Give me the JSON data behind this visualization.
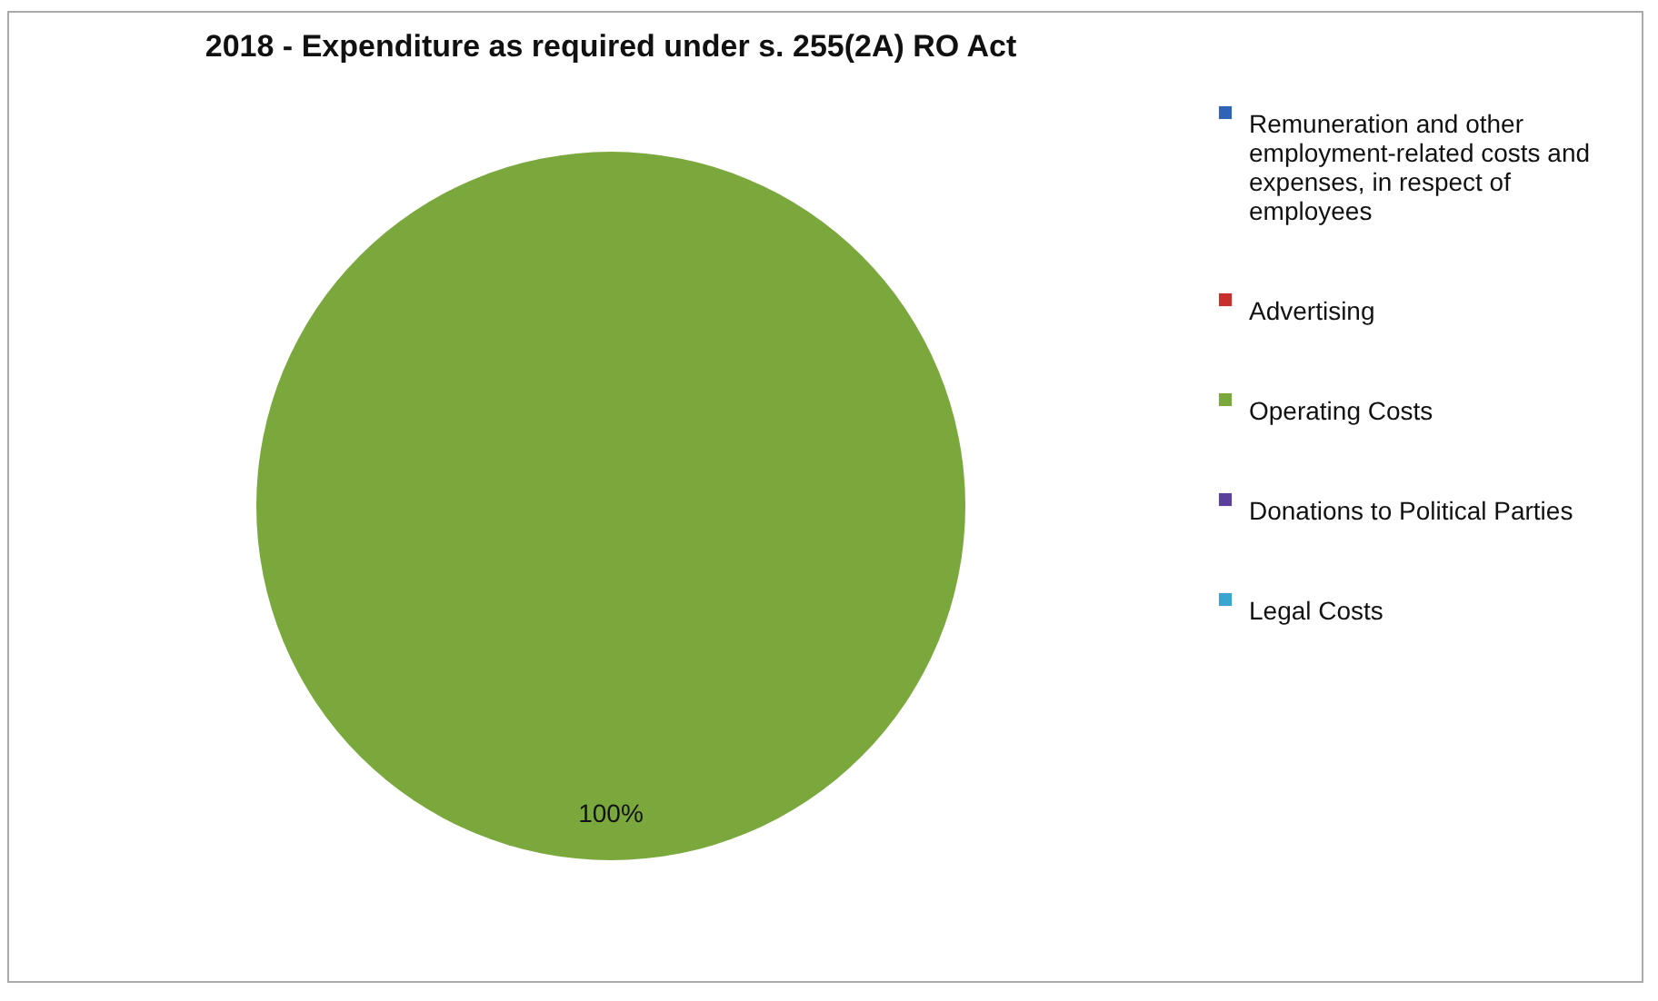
{
  "chart_data": {
    "type": "pie",
    "title": "2018 - Expenditure as required under s. 255(2A) RO Act",
    "categories": [
      "Remuneration and other employment-related costs and expenses, in respect of employees",
      "Advertising",
      "Operating Costs",
      "Donations to Political Parties",
      "Legal Costs"
    ],
    "values": [
      0,
      0,
      100,
      0,
      0
    ],
    "colors": [
      "#2f63b8",
      "#c8302e",
      "#7aa83c",
      "#5a3f9c",
      "#3aa6cf"
    ],
    "value_labels": [
      null,
      null,
      "100%",
      null,
      null
    ],
    "legend": "right"
  }
}
